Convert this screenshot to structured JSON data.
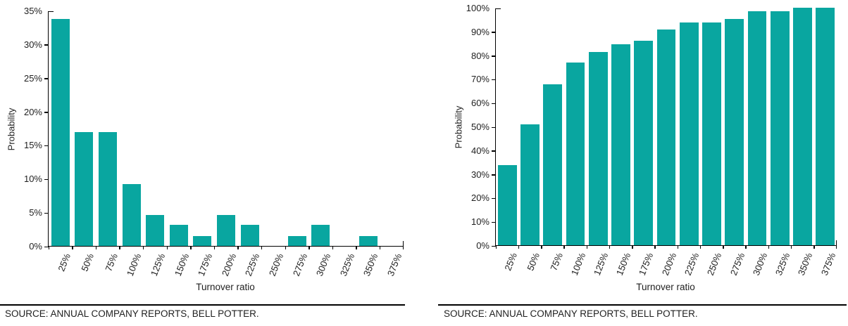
{
  "page": {
    "background_color": "#ffffff",
    "text_color": "#1f1f1f",
    "axis_color": "#000000"
  },
  "chart_data": [
    {
      "type": "bar",
      "title": "",
      "categories": [
        "25%",
        "50%",
        "75%",
        "100%",
        "125%",
        "150%",
        "175%",
        "200%",
        "225%",
        "250%",
        "275%",
        "300%",
        "325%",
        "350%",
        "375%"
      ],
      "values": [
        33.8,
        16.9,
        16.9,
        9.2,
        4.6,
        3.1,
        1.5,
        4.6,
        3.1,
        0,
        1.5,
        3.1,
        0,
        1.5,
        0
      ],
      "xlabel": "Turnover ratio",
      "ylabel": "Probability",
      "ylim": [
        0,
        35
      ],
      "ytick_step": 5,
      "ytick_suffix": "%",
      "grid": false,
      "legend": null,
      "bar_color": "#09A6A0",
      "source_note": "SOURCE: ANNUAL COMPANY REPORTS, BELL POTTER."
    },
    {
      "type": "bar",
      "title": "",
      "categories": [
        "25%",
        "50%",
        "75%",
        "100%",
        "125%",
        "150%",
        "175%",
        "200%",
        "225%",
        "250%",
        "275%",
        "300%",
        "325%",
        "350%",
        "375%"
      ],
      "values": [
        33.8,
        50.8,
        67.7,
        76.9,
        81.5,
        84.6,
        86.2,
        90.8,
        93.8,
        93.8,
        95.4,
        98.5,
        98.5,
        100,
        100
      ],
      "xlabel": "Turnover ratio",
      "ylabel": "Probability",
      "ylim": [
        0,
        100
      ],
      "ytick_step": 10,
      "ytick_suffix": "%",
      "grid": false,
      "legend": null,
      "bar_color": "#09A6A0",
      "source_note": "SOURCE: ANNUAL COMPANY REPORTS, BELL POTTER."
    }
  ]
}
